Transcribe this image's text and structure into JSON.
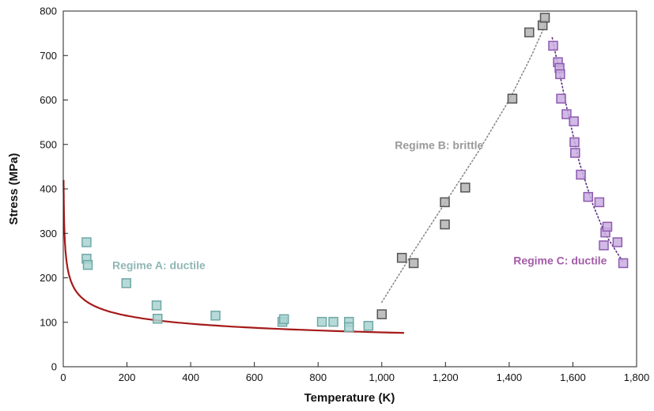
{
  "chart_data": {
    "type": "scatter",
    "xlabel": "Temperature (K)",
    "ylabel": "Stress (MPa)",
    "xlim": [
      0,
      1800
    ],
    "ylim": [
      0,
      800
    ],
    "xticks": [
      0,
      200,
      400,
      600,
      800,
      1000,
      1200,
      1400,
      1600,
      1800
    ],
    "xtick_labels": [
      "0",
      "200",
      "400",
      "600",
      "800",
      "1,000",
      "1,200",
      "1,400",
      "1,600",
      "1,800"
    ],
    "yticks": [
      0,
      100,
      200,
      300,
      400,
      500,
      600,
      700,
      800
    ],
    "ytick_labels": [
      "0",
      "100",
      "200",
      "300",
      "400",
      "500",
      "600",
      "700",
      "800"
    ],
    "grid": false,
    "legend": "none",
    "annotations": [
      {
        "text": "Regime A: ductile",
        "x": 300,
        "y": 220,
        "color": "#8fb6b5"
      },
      {
        "text": "Regime B: brittle",
        "x": 1180,
        "y": 490,
        "color": "#9a9a9a"
      },
      {
        "text": "Regime C: ductile",
        "x": 1560,
        "y": 230,
        "color": "#a35ca8"
      }
    ],
    "series": [
      {
        "marker_fill": "#a9d3d1",
        "marker_edge": "#6fa8a6",
        "points": [
          [
            73,
            280
          ],
          [
            73,
            243
          ],
          [
            77,
            229
          ],
          [
            198,
            188
          ],
          [
            293,
            138
          ],
          [
            296,
            108
          ],
          [
            478,
            115
          ],
          [
            688,
            101
          ],
          [
            693,
            107
          ],
          [
            812,
            101
          ],
          [
            848,
            101
          ],
          [
            897,
            101
          ],
          [
            897,
            89
          ],
          [
            958,
            92
          ]
        ]
      },
      {
        "marker_fill": "#b4b4b4",
        "marker_edge": "#555555",
        "points": [
          [
            1000,
            118
          ],
          [
            1063,
            245
          ],
          [
            1100,
            233
          ],
          [
            1198,
            370
          ],
          [
            1198,
            320
          ],
          [
            1262,
            403
          ],
          [
            1410,
            603
          ],
          [
            1463,
            752
          ],
          [
            1505,
            768
          ],
          [
            1512,
            785
          ]
        ]
      },
      {
        "marker_fill": "#c9aee0",
        "marker_edge": "#8e5ab0",
        "points": [
          [
            1538,
            722
          ],
          [
            1553,
            685
          ],
          [
            1558,
            672
          ],
          [
            1560,
            658
          ],
          [
            1563,
            603
          ],
          [
            1580,
            568
          ],
          [
            1603,
            552
          ],
          [
            1605,
            505
          ],
          [
            1607,
            481
          ],
          [
            1625,
            432
          ],
          [
            1648,
            382
          ],
          [
            1683,
            370
          ],
          [
            1697,
            273
          ],
          [
            1702,
            302
          ],
          [
            1708,
            315
          ],
          [
            1740,
            280
          ],
          [
            1758,
            233
          ]
        ]
      }
    ],
    "fit_lines": [
      {
        "style": "solid",
        "color": "#a61a1a",
        "model": "power",
        "a": 420,
        "b": -0.245,
        "x_range": [
          1,
          1070
        ]
      },
      {
        "style": "dotted",
        "color": "#8a8a8a",
        "points": [
          [
            1000,
            145
          ],
          [
            1100,
            260
          ],
          [
            1200,
            370
          ],
          [
            1300,
            480
          ],
          [
            1400,
            600
          ],
          [
            1470,
            700
          ],
          [
            1520,
            780
          ]
        ]
      },
      {
        "style": "dotted",
        "color": "#5a2d82",
        "points": [
          [
            1535,
            740
          ],
          [
            1580,
            585
          ],
          [
            1620,
            460
          ],
          [
            1660,
            370
          ],
          [
            1700,
            300
          ],
          [
            1755,
            238
          ]
        ]
      }
    ]
  }
}
